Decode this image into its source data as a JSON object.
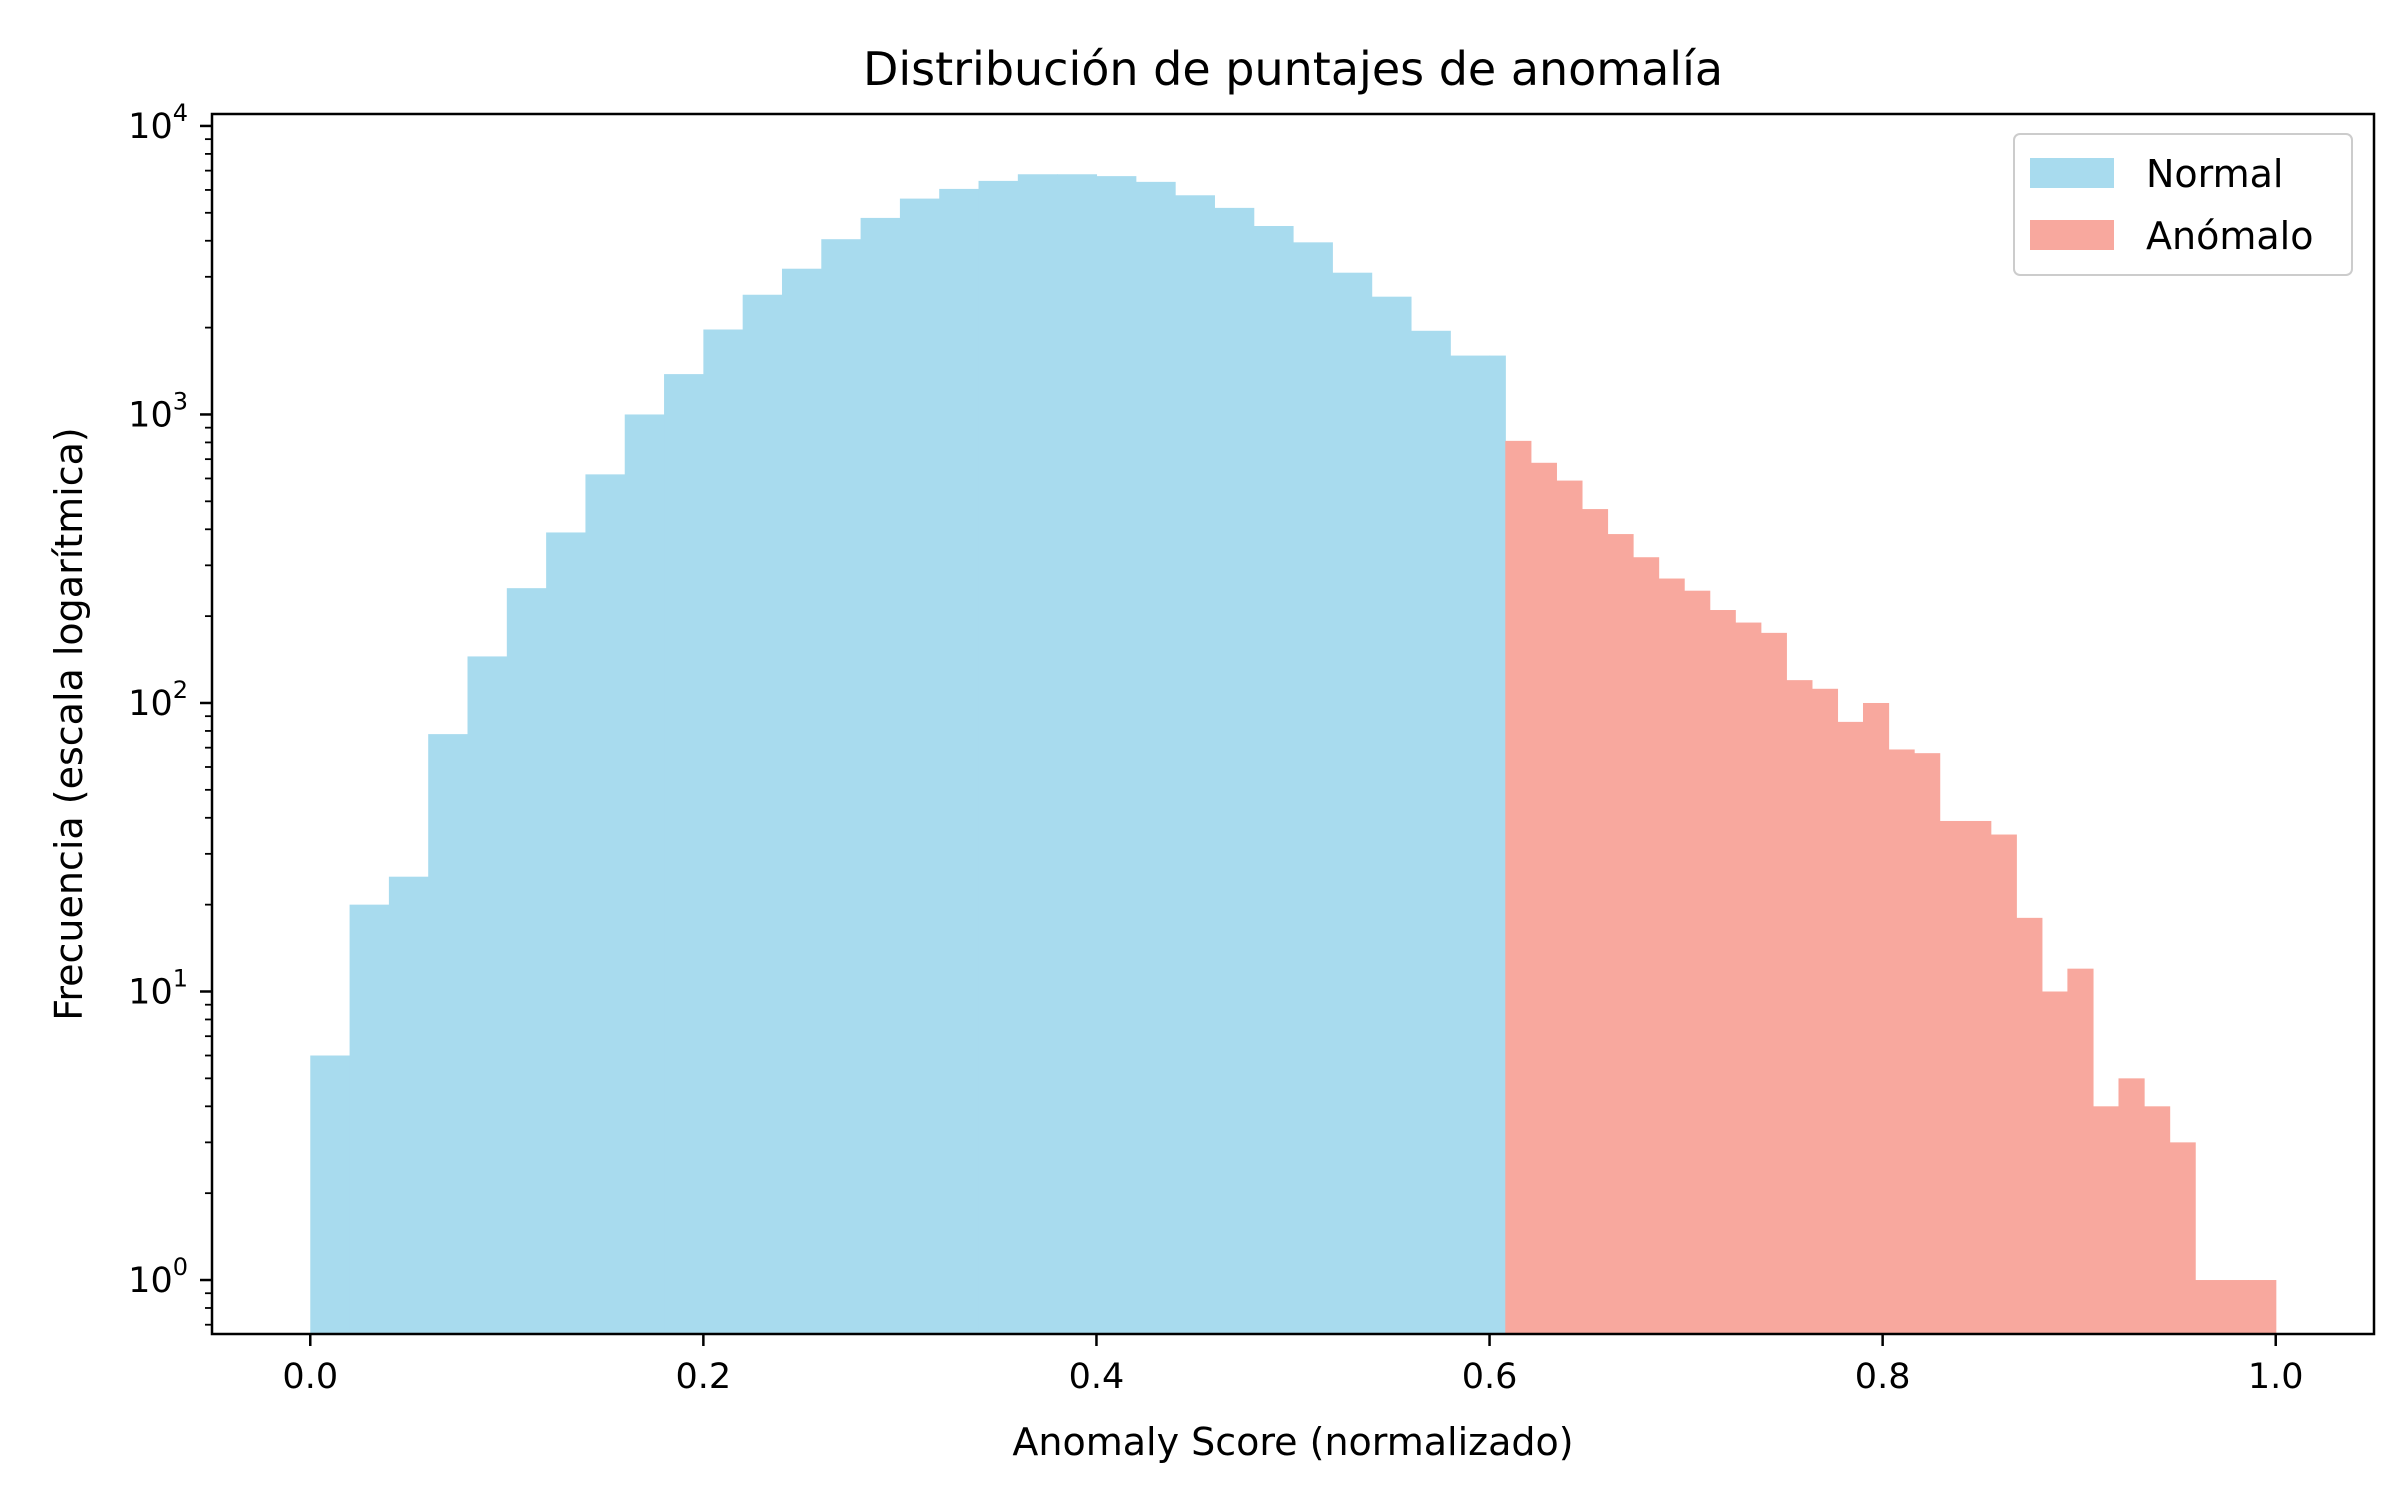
{
  "chart_data": {
    "type": "bar",
    "title": "Distribución de puntajes de anomalía",
    "xlabel": "Anomaly Score (normalizado)",
    "ylabel": "Frecuencia (escala logarítmica)",
    "xlim": [
      -0.05,
      1.05
    ],
    "ylim": [
      0.65,
      11000
    ],
    "yscale": "log",
    "grid": false,
    "legend_position": "top-right",
    "x_ticks": [
      {
        "value": 0.0,
        "label": "0.0"
      },
      {
        "value": 0.2,
        "label": "0.2"
      },
      {
        "value": 0.4,
        "label": "0.4"
      },
      {
        "value": 0.6,
        "label": "0.6"
      },
      {
        "value": 0.8,
        "label": "0.8"
      },
      {
        "value": 1.0,
        "label": "1.0"
      }
    ],
    "y_ticks": [
      {
        "value": 1,
        "base": "10",
        "exp": "0"
      },
      {
        "value": 10,
        "base": "10",
        "exp": "1"
      },
      {
        "value": 100,
        "base": "10",
        "exp": "2"
      },
      {
        "value": 1000,
        "base": "10",
        "exp": "3"
      },
      {
        "value": 10000,
        "base": "10",
        "exp": "4"
      }
    ],
    "series": [
      {
        "name": "Normal",
        "color": "#a8dbee",
        "bin_edges": [
          0.0,
          0.02,
          0.04,
          0.06,
          0.08,
          0.1,
          0.12,
          0.14,
          0.16,
          0.18,
          0.2,
          0.22,
          0.24,
          0.26,
          0.28,
          0.3,
          0.32,
          0.34,
          0.36,
          0.38,
          0.4,
          0.42,
          0.44,
          0.46,
          0.48,
          0.5,
          0.52,
          0.54,
          0.56,
          0.58,
          0.6,
          0.608
        ],
        "counts": [
          6,
          20,
          25,
          78,
          145,
          250,
          390,
          620,
          1000,
          1380,
          1970,
          2600,
          3200,
          4050,
          4800,
          5600,
          6050,
          6450,
          6800,
          6800,
          6700,
          6400,
          5750,
          5200,
          4500,
          3950,
          3100,
          2560,
          1950,
          1600,
          1600
        ]
      },
      {
        "name": "Anómalo",
        "color": "#f8a89e",
        "bin_edges": [
          0.608,
          0.621,
          0.634,
          0.647,
          0.66,
          0.673,
          0.686,
          0.699,
          0.712,
          0.725,
          0.738,
          0.751,
          0.764,
          0.777,
          0.79,
          0.803,
          0.816,
          0.829,
          0.842,
          0.855,
          0.868,
          0.881,
          0.894,
          0.907,
          0.92,
          0.933,
          0.946,
          0.959,
          0.972,
          0.986,
          1.0
        ],
        "counts": [
          810,
          680,
          590,
          470,
          385,
          320,
          270,
          245,
          210,
          190,
          175,
          120,
          112,
          86,
          100,
          69,
          67,
          39,
          39,
          35,
          18,
          10,
          12,
          4,
          5,
          4,
          3,
          1,
          1,
          1
        ]
      }
    ]
  }
}
